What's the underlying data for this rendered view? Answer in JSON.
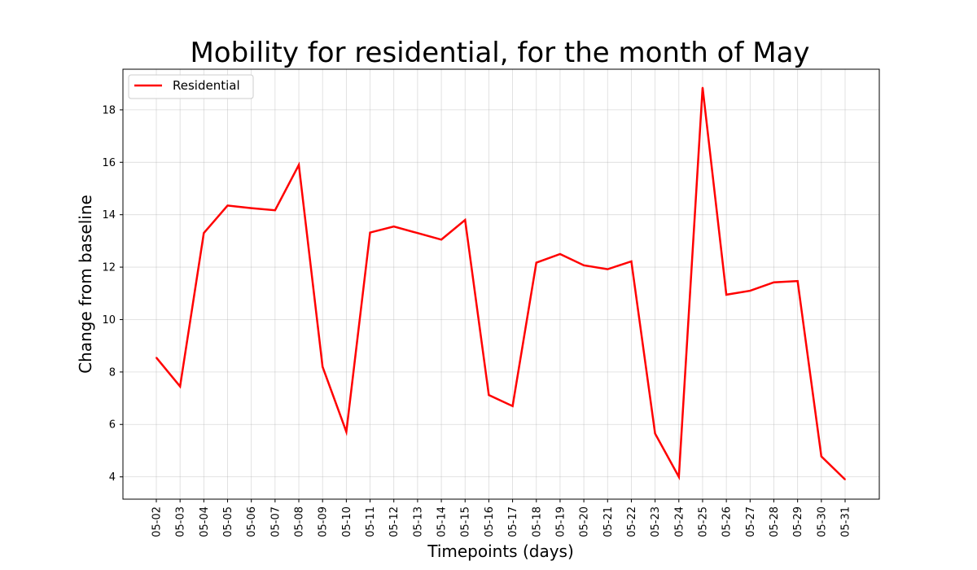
{
  "chart_data": {
    "type": "line",
    "title": "Mobility for residential, for the month of May",
    "xlabel": "Timepoints (days)",
    "ylabel": "Change from baseline",
    "categories": [
      "05-02",
      "05-03",
      "05-04",
      "05-05",
      "05-06",
      "05-07",
      "05-08",
      "05-09",
      "05-10",
      "05-11",
      "05-12",
      "05-13",
      "05-14",
      "05-15",
      "05-16",
      "05-17",
      "05-18",
      "05-19",
      "05-20",
      "05-21",
      "05-22",
      "05-23",
      "05-24",
      "05-25",
      "05-26",
      "05-27",
      "05-28",
      "05-29",
      "05-30",
      "05-31"
    ],
    "series": [
      {
        "name": "Residential",
        "color": "#ff0000",
        "values": [
          8.55,
          7.45,
          13.3,
          14.35,
          14.25,
          14.17,
          15.9,
          8.2,
          5.72,
          13.32,
          13.55,
          13.3,
          13.05,
          13.8,
          7.12,
          6.7,
          12.17,
          12.5,
          12.07,
          11.92,
          12.22,
          5.65,
          4.0,
          18.85,
          10.95,
          11.1,
          11.42,
          11.47,
          4.78,
          3.9
        ]
      }
    ],
    "ylim": [
      3.15,
      19.55
    ],
    "yticks": [
      "4",
      "6",
      "8",
      "10",
      "12",
      "14",
      "16",
      "18"
    ],
    "grid": true,
    "legend_position": "top-left"
  }
}
